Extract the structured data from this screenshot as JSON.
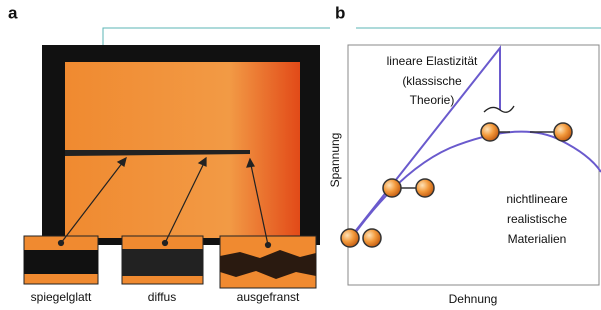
{
  "panel_a": {
    "label": "a",
    "insets": [
      "spiegelglatt",
      "diffus",
      "ausgefranst"
    ]
  },
  "panel_b": {
    "label": "b",
    "y_axis_label": "Spannung",
    "x_axis_label": "Dehnung",
    "linear_note": [
      "lineare Elastizität",
      "(klassische",
      "Theorie)"
    ],
    "nonlinear_note": [
      "nichtlineare",
      "realistische",
      "Materialien"
    ]
  }
}
